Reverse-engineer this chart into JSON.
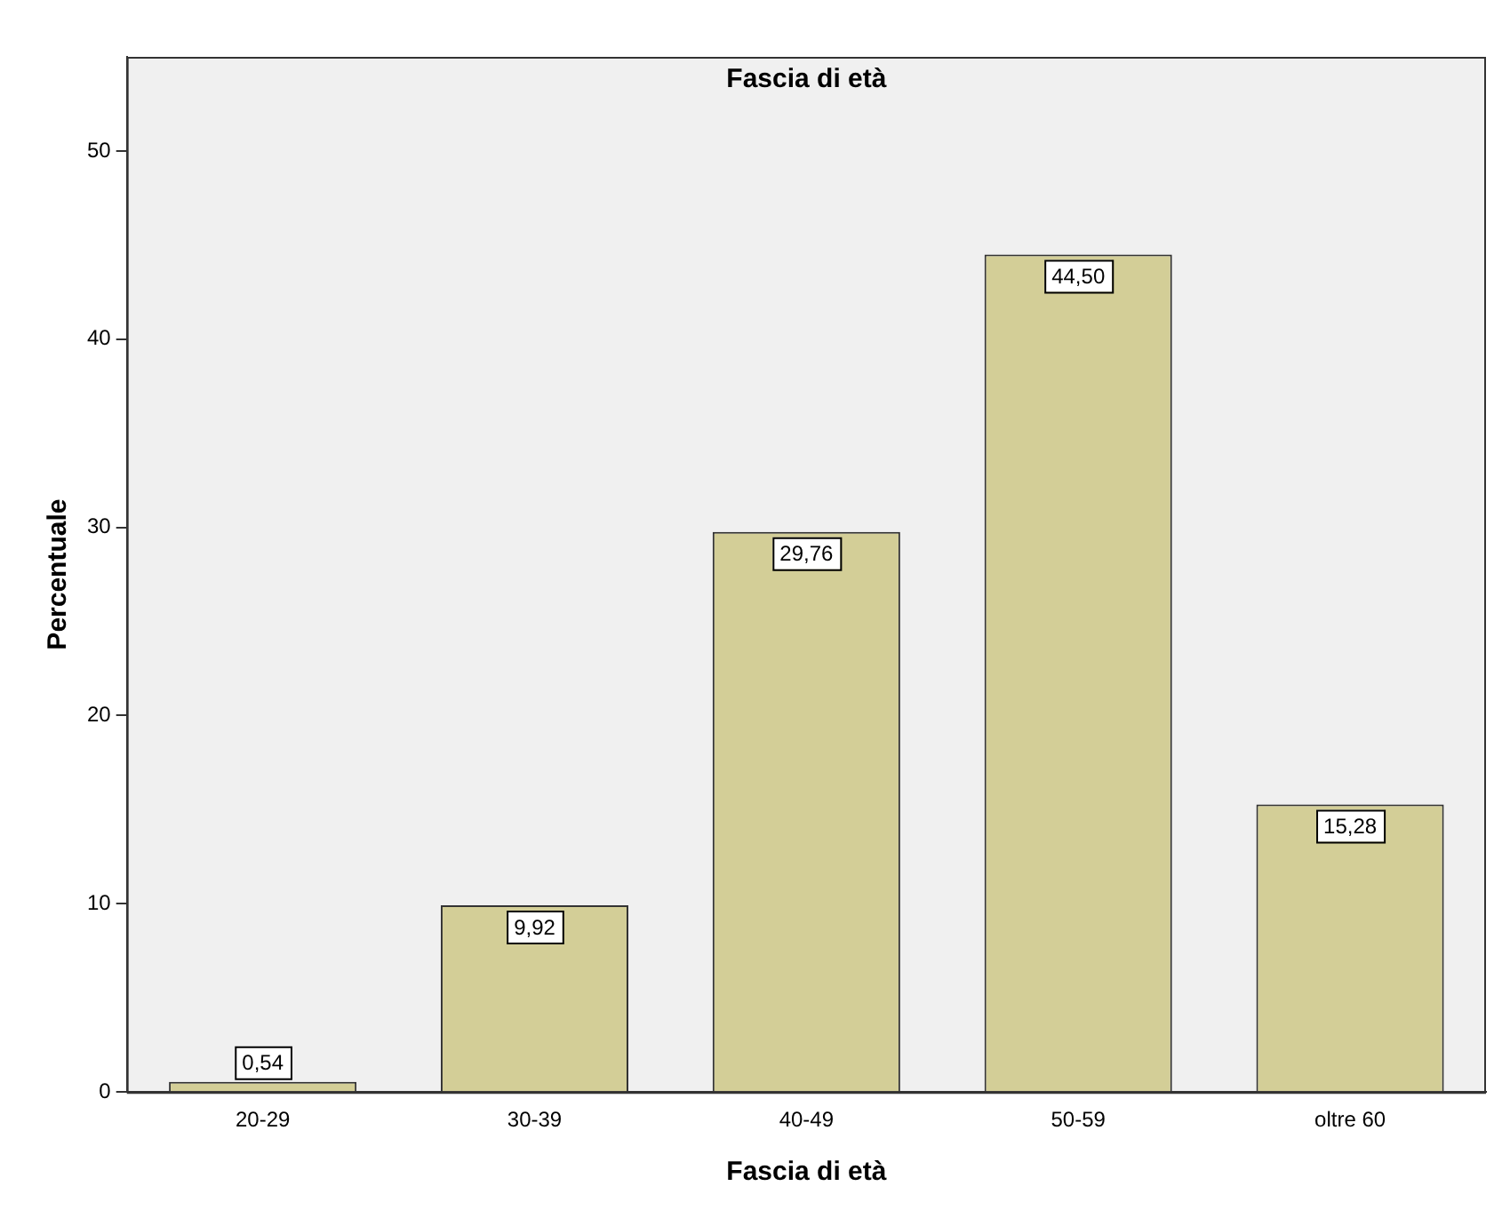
{
  "chart_data": {
    "type": "bar",
    "title": "Fascia di età",
    "xlabel": "Fascia di età",
    "ylabel": "Percentuale",
    "categories": [
      "20-29",
      "30-39",
      "40-49",
      "50-59",
      "oltre 60"
    ],
    "values": [
      0.54,
      9.92,
      29.76,
      44.5,
      15.28
    ],
    "value_labels": [
      "0,54",
      "9,92",
      "29,76",
      "44,50",
      "15,28"
    ],
    "color": "#d3ce97",
    "ylim": [
      0,
      55
    ],
    "yticks": [
      0,
      10,
      20,
      30,
      40,
      50
    ],
    "grid": false,
    "legend": false
  }
}
